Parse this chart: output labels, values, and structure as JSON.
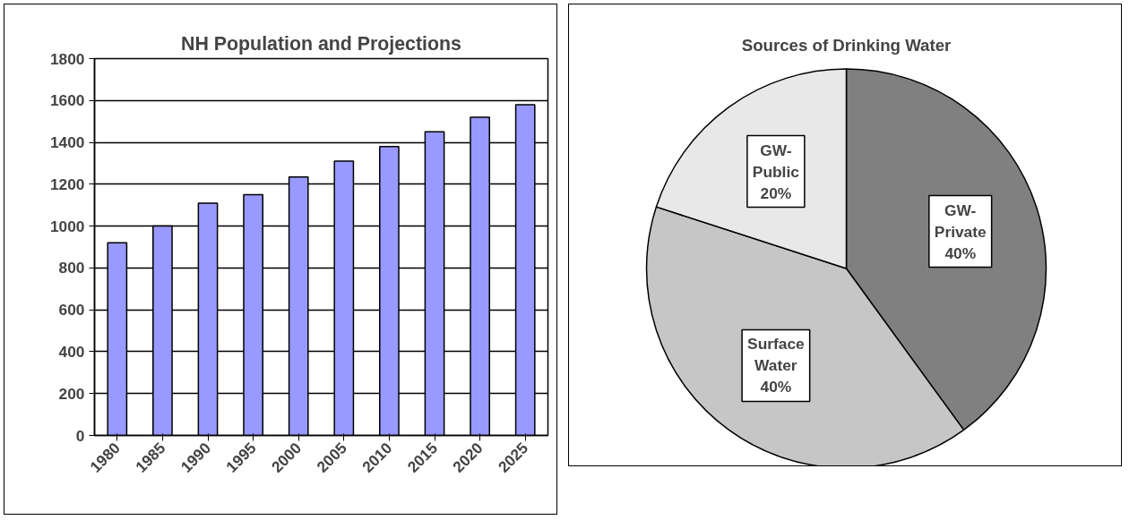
{
  "chart_data": [
    {
      "type": "bar",
      "title": "NH Population and Projections",
      "categories": [
        "1980",
        "1985",
        "1990",
        "1995",
        "2000",
        "2005",
        "2010",
        "2015",
        "2020",
        "2025"
      ],
      "values": [
        920,
        1000,
        1110,
        1150,
        1235,
        1310,
        1380,
        1450,
        1520,
        1580
      ],
      "color": "#9999ff",
      "ylim": [
        0,
        1800
      ],
      "yticks": [
        0,
        200,
        400,
        600,
        800,
        1000,
        1200,
        1400,
        1600,
        1800
      ],
      "grid": "y"
    },
    {
      "type": "pie",
      "title": "Sources of Drinking Water",
      "categories": [
        "GW-Private",
        "Surface Water",
        "GW-Public"
      ],
      "values": [
        40,
        40,
        20
      ],
      "value_labels": [
        "40%",
        "40%",
        "20%"
      ],
      "colors": [
        "#808080",
        "#c6c6c6",
        "#e8e8e8"
      ]
    }
  ]
}
